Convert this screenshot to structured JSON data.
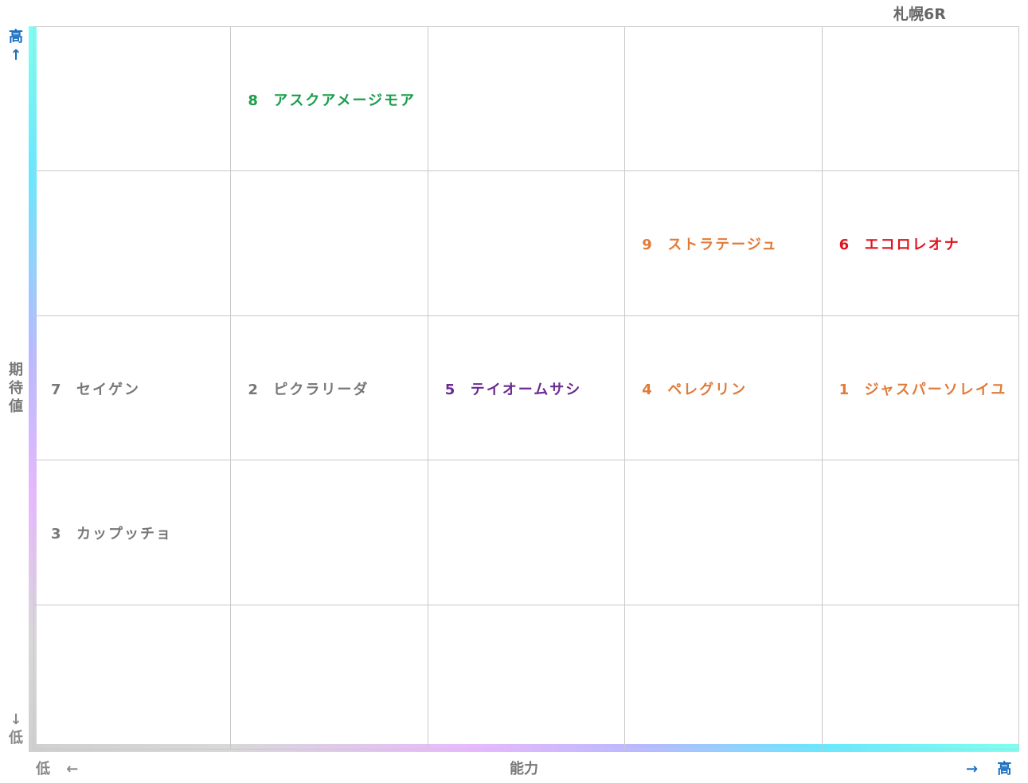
{
  "title": "札幌6R",
  "y_axis": {
    "high": "高↑",
    "label": "期待値",
    "low": "↓低"
  },
  "x_axis": {
    "low": "低 ←",
    "label": "能力",
    "high": "→ 高"
  },
  "grid": {
    "rows": [
      {
        "cells": [
          null,
          {
            "number": 8,
            "name": "アスクアメージモア",
            "color": "#1a9e4a"
          },
          null,
          null,
          null
        ]
      },
      {
        "cells": [
          null,
          null,
          null,
          {
            "number": 9,
            "name": "ストラテージュ",
            "color": "#e07b39"
          },
          {
            "number": 6,
            "name": "エコロレオナ",
            "color": "#e0141e"
          }
        ]
      },
      {
        "cells": [
          {
            "number": 7,
            "name": "セイゲン",
            "color": "#777777"
          },
          {
            "number": 2,
            "name": "ピクラリーダ",
            "color": "#777777"
          },
          {
            "number": 5,
            "name": "テイオームサシ",
            "color": "#6a2c91"
          },
          {
            "number": 4,
            "name": "ペレグリン",
            "color": "#e07b39"
          },
          {
            "number": 1,
            "name": "ジャスパーソレイユ",
            "color": "#e07b39"
          }
        ]
      },
      {
        "cells": [
          {
            "number": 3,
            "name": "カップッチョ",
            "color": "#777777"
          },
          null,
          null,
          null,
          null
        ]
      },
      {
        "cells": [
          null,
          null,
          null,
          null,
          null
        ]
      }
    ]
  }
}
